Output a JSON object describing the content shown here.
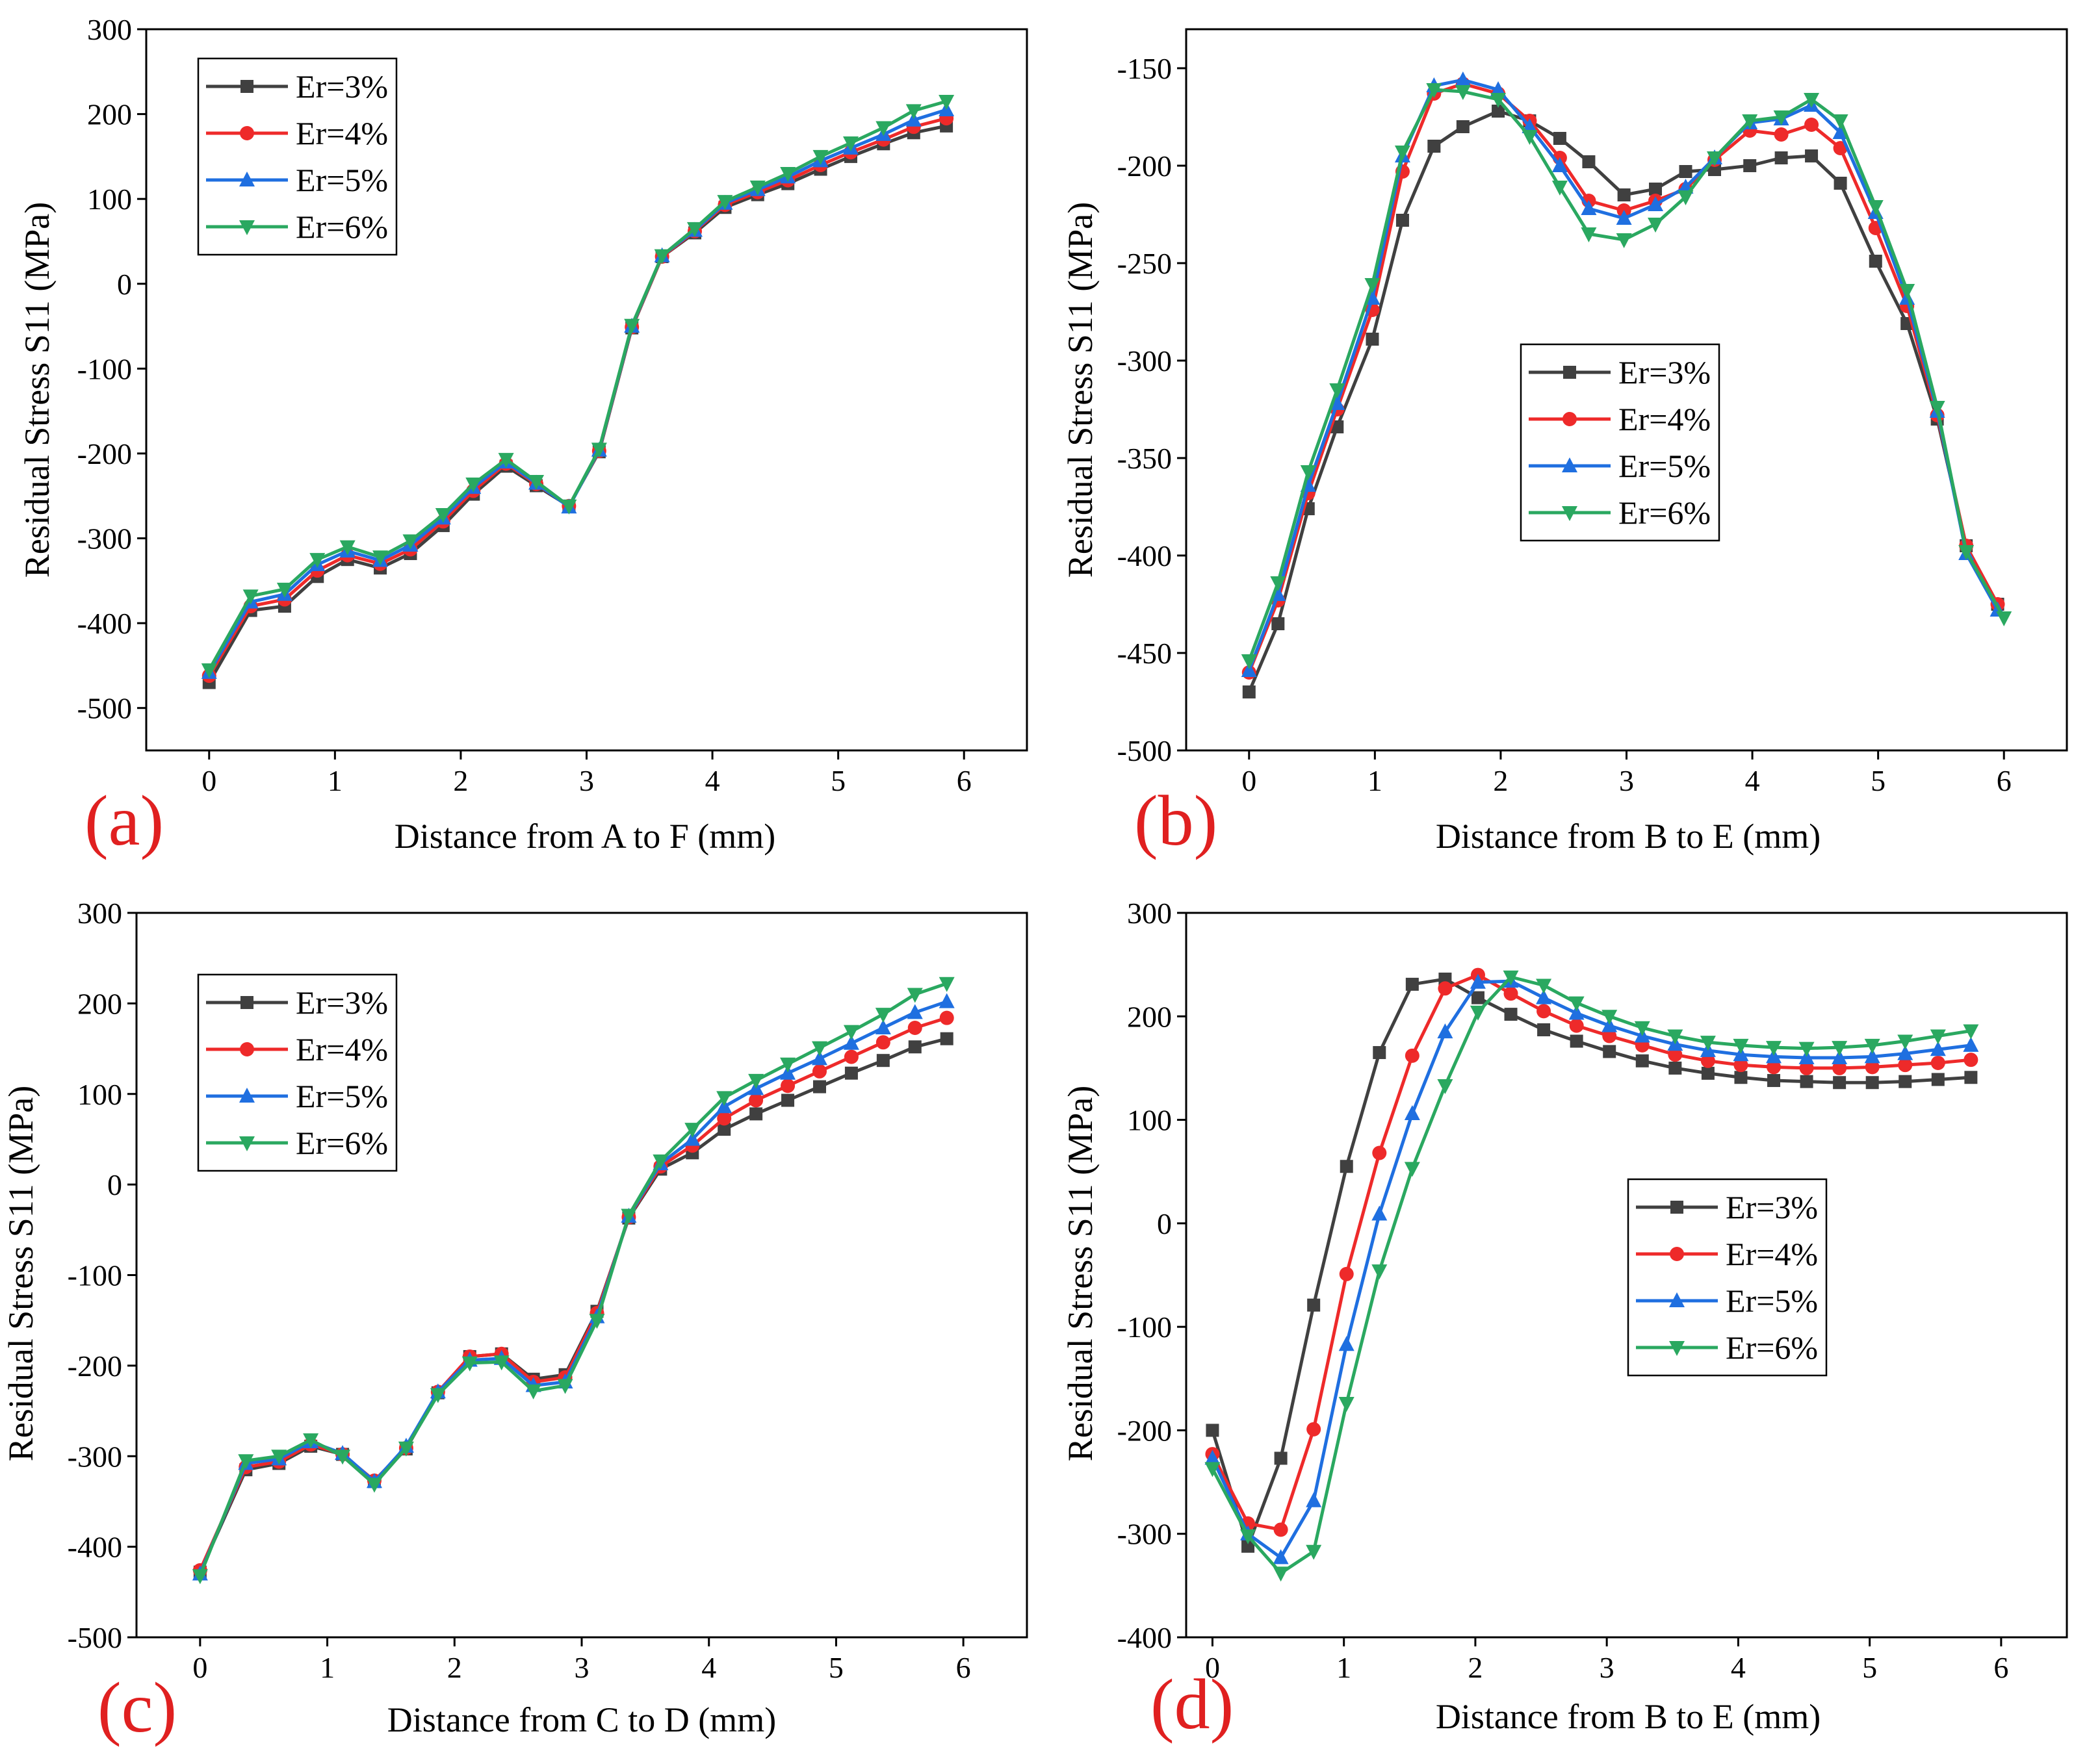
{
  "chart_data": [
    {
      "type": "line",
      "panel_label": "(a)",
      "xlabel": "Distance from A to F (mm)",
      "ylabel": "Residual Stress S11 (MPa)",
      "xlim": [
        -0.5,
        6.5
      ],
      "ylim": [
        -550,
        300
      ],
      "xticks": [
        0,
        1,
        2,
        3,
        4,
        5,
        6
      ],
      "yticks": [
        -500,
        -400,
        -300,
        -200,
        -100,
        0,
        100,
        200,
        300
      ],
      "legend_position": "top-left",
      "x": [
        0,
        0.33,
        0.6,
        0.86,
        1.1,
        1.36,
        1.6,
        1.86,
        2.1,
        2.36,
        2.6,
        2.86,
        3.1,
        3.36,
        3.6,
        3.86,
        4.1,
        4.36,
        4.6,
        4.86,
        5.1,
        5.36,
        5.6,
        5.86
      ],
      "series": [
        {
          "name": "Er=3%",
          "color": "#404040",
          "marker": "square",
          "values": [
            -470,
            -385,
            -380,
            -345,
            -325,
            -335,
            -318,
            -285,
            -248,
            -215,
            -238,
            -262,
            -198,
            -52,
            32,
            60,
            90,
            105,
            118,
            135,
            150,
            165,
            178,
            186
          ]
        },
        {
          "name": "Er=4%",
          "color": "#ee2a2a",
          "marker": "circle",
          "values": [
            -462,
            -380,
            -372,
            -338,
            -320,
            -330,
            -313,
            -280,
            -244,
            -212,
            -236,
            -262,
            -197,
            -51,
            32,
            62,
            93,
            108,
            122,
            140,
            155,
            170,
            185,
            195
          ]
        },
        {
          "name": "Er=5%",
          "color": "#1f6fe0",
          "marker": "triangle-up",
          "values": [
            -458,
            -375,
            -366,
            -331,
            -315,
            -326,
            -308,
            -276,
            -240,
            -210,
            -235,
            -263,
            -196,
            -50,
            33,
            63,
            95,
            111,
            126,
            145,
            160,
            176,
            193,
            205
          ]
        },
        {
          "name": "Er=6%",
          "color": "#2aa860",
          "marker": "triangle-down",
          "values": [
            -455,
            -368,
            -360,
            -325,
            -310,
            -322,
            -303,
            -272,
            -236,
            -207,
            -233,
            -262,
            -195,
            -49,
            33,
            65,
            97,
            114,
            130,
            150,
            166,
            184,
            204,
            215
          ]
        }
      ]
    },
    {
      "type": "line",
      "panel_label": "(b)",
      "xlabel": "Distance from B to E (mm)",
      "ylabel": "Residual Stress S11 (MPa)",
      "xlim": [
        -0.5,
        6.5
      ],
      "ylim": [
        -500,
        -130
      ],
      "xticks": [
        0,
        1,
        2,
        3,
        4,
        5,
        6
      ],
      "yticks": [
        -500,
        -450,
        -400,
        -350,
        -300,
        -250,
        -200,
        -150
      ],
      "legend_position": "center",
      "x": [
        0,
        0.23,
        0.47,
        0.7,
        0.98,
        1.22,
        1.47,
        1.7,
        1.98,
        2.23,
        2.47,
        2.7,
        2.98,
        3.23,
        3.47,
        3.7,
        3.98,
        4.23,
        4.47,
        4.7,
        4.98,
        5.23,
        5.47,
        5.7,
        5.95,
        6.0
      ],
      "series": [
        {
          "name": "Er=3%",
          "color": "#404040",
          "marker": "square",
          "values": [
            -470,
            -435,
            -376,
            -334,
            -289,
            -228,
            -190,
            -180,
            -172,
            -177,
            -186,
            -198,
            -215,
            -212,
            -203,
            -202,
            -200,
            -196,
            -195,
            -209,
            -249,
            -281,
            -330,
            -395,
            -425,
            null
          ]
        },
        {
          "name": "Er=4%",
          "color": "#ee2a2a",
          "marker": "circle",
          "values": [
            -460,
            -423,
            -368,
            -325,
            -274,
            -203,
            -163,
            -158,
            -163,
            -177,
            -196,
            -218,
            -223,
            -218,
            -212,
            -197,
            -182,
            -184,
            -179,
            -191,
            -232,
            -272,
            -328,
            -395,
            -425,
            null
          ]
        },
        {
          "name": "Er=5%",
          "color": "#1f6fe0",
          "marker": "triangle-up",
          "values": [
            -459,
            -420,
            -364,
            -322,
            -268,
            -195,
            -159,
            -156,
            -161,
            -180,
            -200,
            -222,
            -227,
            -220,
            -211,
            -196,
            -178,
            -176,
            -169,
            -183,
            -224,
            -268,
            -326,
            -399,
            -428,
            null
          ]
        },
        {
          "name": "Er=6%",
          "color": "#2aa860",
          "marker": "triangle-down",
          "values": [
            -454,
            -414,
            -357,
            -315,
            -261,
            -193,
            -161,
            -162,
            -166,
            -185,
            -211,
            -235,
            -238,
            -230,
            -216,
            -196,
            -177,
            -175,
            -166,
            -177,
            -221,
            -264,
            -324,
            -398,
            null,
            -432
          ]
        }
      ]
    },
    {
      "type": "line",
      "panel_label": "(c)",
      "xlabel": "Distance from C to D (mm)",
      "ylabel": "Residual Stress S11 (MPa)",
      "xlim": [
        -0.5,
        6.5
      ],
      "ylim": [
        -500,
        300
      ],
      "xticks": [
        0,
        1,
        2,
        3,
        4,
        5,
        6
      ],
      "yticks": [
        -500,
        -400,
        -300,
        -200,
        -100,
        0,
        100,
        200,
        300
      ],
      "legend_position": "top-left",
      "x": [
        0,
        0.36,
        0.62,
        0.87,
        1.12,
        1.37,
        1.62,
        1.87,
        2.12,
        2.37,
        2.62,
        2.87,
        3.12,
        3.37,
        3.62,
        3.87,
        4.12,
        4.37,
        4.62,
        4.87,
        5.12,
        5.37,
        5.62,
        5.87
      ],
      "series": [
        {
          "name": "Er=3%",
          "color": "#404040",
          "marker": "square",
          "values": [
            -428,
            -315,
            -308,
            -289,
            -298,
            -328,
            -292,
            -230,
            -190,
            -187,
            -215,
            -210,
            -140,
            -37,
            17,
            35,
            61,
            78,
            93,
            108,
            123,
            137,
            152,
            161
          ]
        },
        {
          "name": "Er=4%",
          "color": "#ee2a2a",
          "marker": "circle",
          "values": [
            -426,
            -312,
            -306,
            -287,
            -298,
            -327,
            -291,
            -229,
            -190,
            -187,
            -218,
            -213,
            -142,
            -36,
            20,
            43,
            73,
            93,
            109,
            125,
            141,
            157,
            173,
            184
          ]
        },
        {
          "name": "Er=5%",
          "color": "#1f6fe0",
          "marker": "triangle-up",
          "values": [
            -430,
            -308,
            -303,
            -284,
            -297,
            -328,
            -289,
            -229,
            -194,
            -192,
            -222,
            -218,
            -146,
            -35,
            23,
            50,
            86,
            106,
            123,
            139,
            156,
            173,
            190,
            202
          ]
        },
        {
          "name": "Er=6%",
          "color": "#2aa860",
          "marker": "triangle-down",
          "values": [
            -432,
            -305,
            -300,
            -282,
            -300,
            -331,
            -291,
            -232,
            -197,
            -196,
            -228,
            -222,
            -150,
            -34,
            26,
            61,
            96,
            115,
            133,
            151,
            169,
            188,
            210,
            222
          ]
        }
      ]
    },
    {
      "type": "line",
      "panel_label": "(d)",
      "xlabel": "Distance from B to E (mm)",
      "ylabel": "Residual Stress S11 (MPa)",
      "xlim": [
        -0.2,
        6.5
      ],
      "ylim": [
        -400,
        300
      ],
      "xticks": [
        0,
        1,
        2,
        3,
        4,
        5,
        6
      ],
      "yticks": [
        -400,
        -300,
        -200,
        -100,
        0,
        100,
        200,
        300
      ],
      "legend_position": "center-right",
      "x": [
        0,
        0.27,
        0.52,
        0.77,
        1.02,
        1.27,
        1.52,
        1.77,
        2.02,
        2.27,
        2.52,
        2.77,
        3.02,
        3.27,
        3.52,
        3.77,
        4.02,
        4.27,
        4.52,
        4.77,
        5.02,
        5.27,
        5.52,
        5.77
      ],
      "series": [
        {
          "name": "Er=3%",
          "color": "#404040",
          "marker": "square",
          "values": [
            -200,
            -312,
            -227,
            -79,
            55,
            165,
            231,
            236,
            218,
            202,
            187,
            176,
            166,
            157,
            150,
            145,
            141,
            138,
            137,
            136,
            136,
            137,
            139,
            141
          ]
        },
        {
          "name": "Er=4%",
          "color": "#ee2a2a",
          "marker": "circle",
          "values": [
            -223,
            -290,
            -296,
            -199,
            -49,
            68,
            162,
            227,
            240,
            222,
            205,
            191,
            181,
            172,
            163,
            157,
            153,
            151,
            150,
            150,
            151,
            153,
            155,
            158
          ]
        },
        {
          "name": "Er=5%",
          "color": "#1f6fe0",
          "marker": "triangle-up",
          "values": [
            -227,
            -300,
            -323,
            -268,
            -117,
            9,
            106,
            185,
            233,
            234,
            218,
            203,
            191,
            181,
            173,
            167,
            163,
            161,
            160,
            160,
            161,
            164,
            168,
            172
          ]
        },
        {
          "name": "Er=6%",
          "color": "#2aa860",
          "marker": "triangle-down",
          "values": [
            -237,
            -302,
            -338,
            -317,
            -174,
            -46,
            53,
            133,
            204,
            238,
            230,
            213,
            200,
            189,
            181,
            175,
            172,
            170,
            169,
            170,
            172,
            176,
            181,
            186
          ]
        }
      ]
    }
  ]
}
